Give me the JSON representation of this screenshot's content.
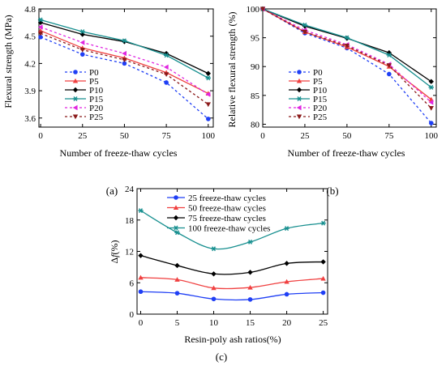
{
  "chart_data": [
    {
      "type": "line",
      "panel_label": "(a)",
      "xlabel": "Number of freeze-thaw cycles",
      "ylabel": "Flexural strength (MPa)",
      "x": [
        0,
        25,
        50,
        75,
        100
      ],
      "xticks": [
        0,
        25,
        50,
        75,
        100
      ],
      "yticks": [
        "3.6",
        "3.9",
        "4.2",
        "4.5",
        "4.8"
      ],
      "ylim": [
        3.5,
        4.8
      ],
      "legend_position": "left",
      "series": [
        {
          "name": "P0",
          "color": "#1f3ff5",
          "marker": "circle",
          "dash": "3,3",
          "values": [
            4.49,
            4.3,
            4.2,
            3.99,
            3.59
          ]
        },
        {
          "name": "P5",
          "color": "#f04040",
          "marker": "triangle",
          "dash": "",
          "values": [
            4.56,
            4.37,
            4.26,
            4.1,
            3.87
          ]
        },
        {
          "name": "P10",
          "color": "#000000",
          "marker": "diamond",
          "dash": "",
          "values": [
            4.65,
            4.52,
            4.44,
            4.31,
            4.09
          ]
        },
        {
          "name": "P15",
          "color": "#178f8f",
          "marker": "star",
          "dash": "",
          "values": [
            4.68,
            4.55,
            4.45,
            4.29,
            4.04
          ]
        },
        {
          "name": "P20",
          "color": "#e026e0",
          "marker": "tri-left",
          "dash": "3,3",
          "values": [
            4.6,
            4.43,
            4.31,
            4.16,
            3.86
          ]
        },
        {
          "name": "P25",
          "color": "#8b1a1a",
          "marker": "tri-down",
          "dash": "3,3",
          "values": [
            4.53,
            4.35,
            4.24,
            4.08,
            3.75
          ]
        }
      ]
    },
    {
      "type": "line",
      "panel_label": "(b)",
      "xlabel": "Number of freeze-thaw cycles",
      "ylabel": "Relative flexural strength (%)",
      "x": [
        0,
        25,
        50,
        75,
        100
      ],
      "xticks": [
        0,
        25,
        50,
        75,
        100
      ],
      "yticks": [
        "80",
        "85",
        "90",
        "95",
        "100"
      ],
      "ylim": [
        79.5,
        100
      ],
      "legend_position": "left",
      "series": [
        {
          "name": "P0",
          "color": "#1f3ff5",
          "marker": "circle",
          "dash": "3,3",
          "values": [
            100,
            95.8,
            93.2,
            88.7,
            80.2
          ]
        },
        {
          "name": "P5",
          "color": "#f04040",
          "marker": "triangle",
          "dash": "",
          "values": [
            100,
            96.0,
            93.4,
            90.0,
            84.3
          ]
        },
        {
          "name": "P10",
          "color": "#000000",
          "marker": "diamond",
          "dash": "",
          "values": [
            100,
            97.0,
            94.9,
            92.4,
            87.4
          ]
        },
        {
          "name": "P15",
          "color": "#178f8f",
          "marker": "star",
          "dash": "",
          "values": [
            100,
            97.2,
            95.0,
            92.0,
            86.4
          ]
        },
        {
          "name": "P20",
          "color": "#e026e0",
          "marker": "tri-left",
          "dash": "3,3",
          "values": [
            100,
            96.3,
            93.8,
            90.4,
            83.8
          ]
        },
        {
          "name": "P25",
          "color": "#8b1a1a",
          "marker": "tri-down",
          "dash": "3,3",
          "values": [
            100,
            96.0,
            93.6,
            90.2,
            82.8
          ]
        }
      ]
    },
    {
      "type": "line",
      "panel_label": "(c)",
      "xlabel": "Resin-poly ash ratios(%)",
      "ylabel": "Δf (%)",
      "ylabel_main": "Δ",
      "ylabel_sym": "f",
      "ylabel_unit": "(%)",
      "x": [
        0,
        5,
        10,
        15,
        20,
        25
      ],
      "xticks": [
        0,
        5,
        10,
        15,
        20,
        25
      ],
      "yticks": [
        "0",
        "6",
        "12",
        "18",
        "24"
      ],
      "ylim": [
        0,
        24
      ],
      "legend_position": "top-left",
      "series": [
        {
          "name": "25 freeze-thaw cycles",
          "color": "#1f3ff5",
          "marker": "circle",
          "values": [
            4.3,
            4.0,
            2.9,
            2.8,
            3.8,
            4.1
          ]
        },
        {
          "name": "50 freeze-thaw cycles",
          "color": "#f04040",
          "marker": "triangle",
          "values": [
            7.0,
            6.6,
            5.0,
            5.1,
            6.2,
            6.8
          ]
        },
        {
          "name": "75 freeze-thaw cycles",
          "color": "#000000",
          "marker": "diamond",
          "values": [
            11.2,
            9.3,
            7.7,
            8.0,
            9.7,
            10.0
          ]
        },
        {
          "name": "100 freeze-thaw cycles",
          "color": "#178f8f",
          "marker": "star",
          "values": [
            19.8,
            15.6,
            12.5,
            13.8,
            16.4,
            17.4
          ]
        }
      ]
    }
  ]
}
